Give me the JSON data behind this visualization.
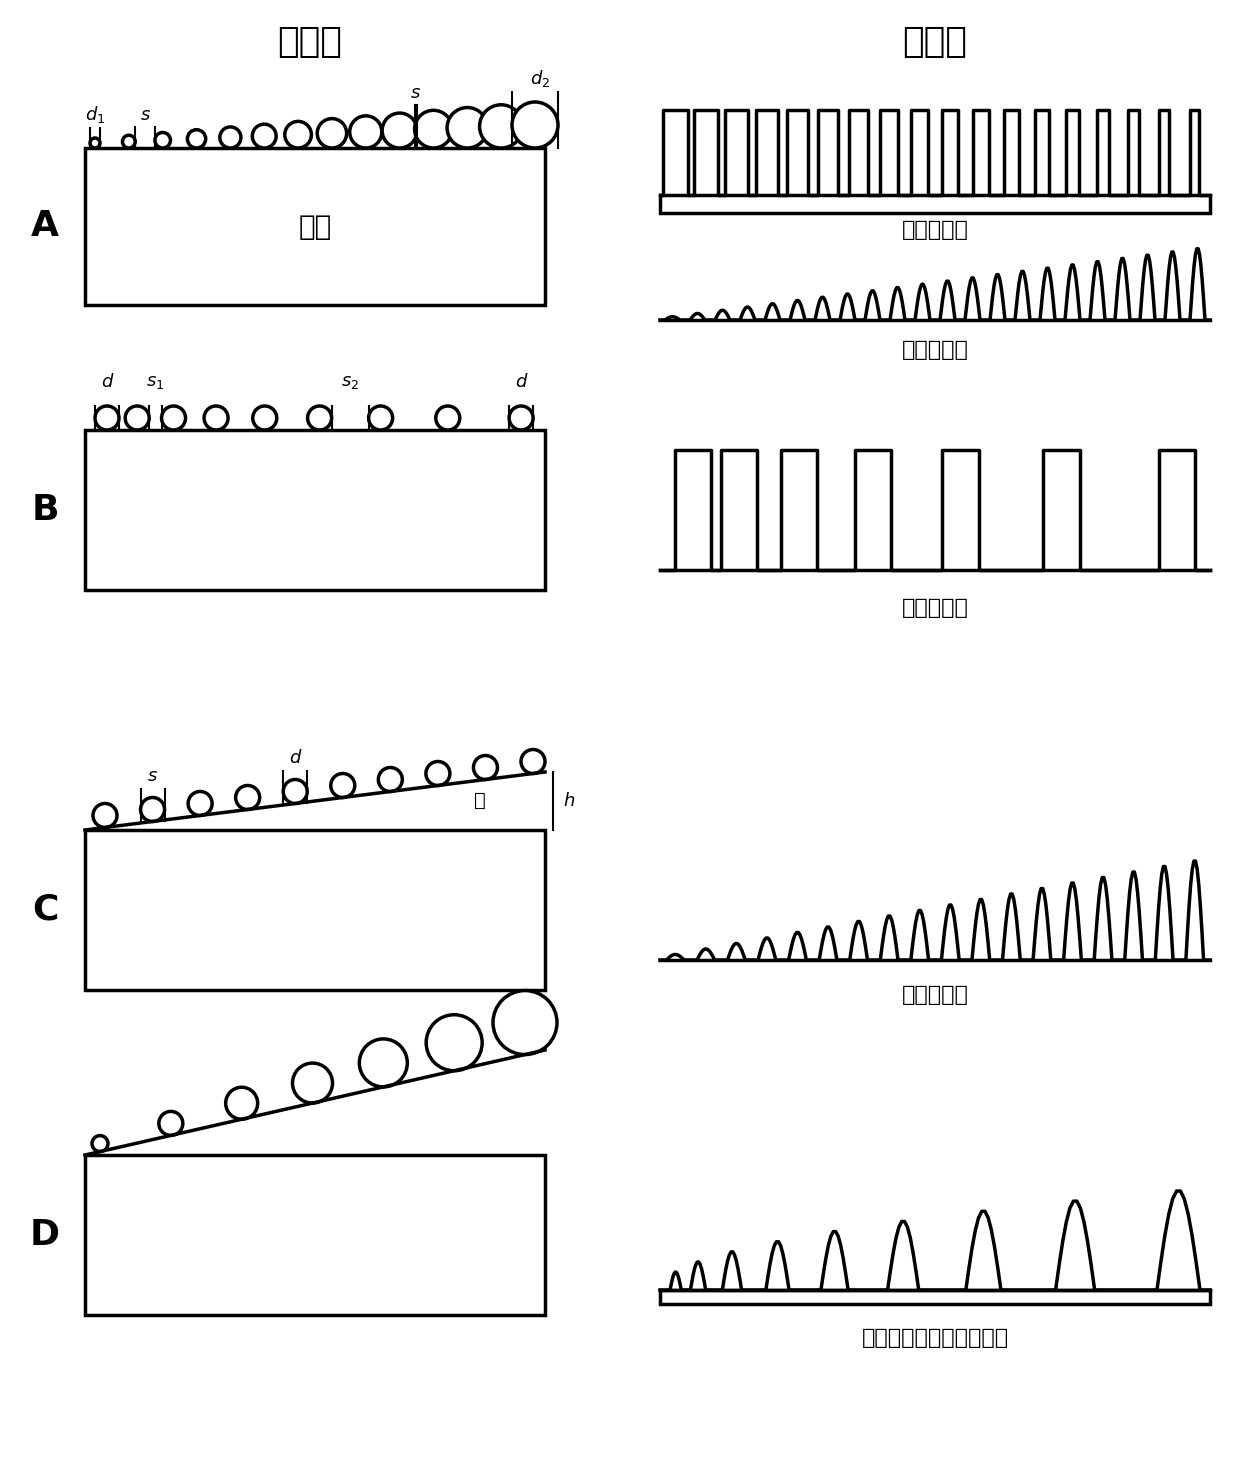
{
  "title_left": "蚀刻前",
  "title_right": "蚀刻后",
  "label_A": "A",
  "label_B": "B",
  "label_C": "C",
  "label_D": "D",
  "substrate_text": "村底",
  "layer_text": "层",
  "caption_A1": "不同的直径",
  "caption_A2": "不同的高度",
  "caption_B": "不同的间距",
  "caption_C": "不同的高度",
  "caption_D": "不同的高度、直径和间距",
  "bg_color": "#ffffff",
  "line_color": "#000000",
  "lw": 2.5
}
